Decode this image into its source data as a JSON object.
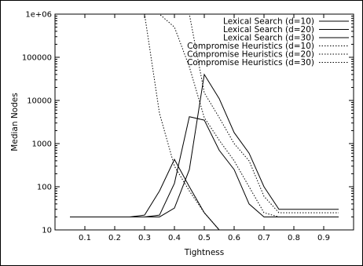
{
  "chart_data": {
    "type": "line",
    "xlabel": "Tightness",
    "ylabel": "Median Nodes",
    "xlim": [
      0,
      1
    ],
    "ylim": [
      10,
      1000000
    ],
    "yscale": "log",
    "x_ticks": [
      "0.1",
      "0.2",
      "0.3",
      "0.4",
      "0.5",
      "0.6",
      "0.7",
      "0.8",
      "0.9"
    ],
    "y_ticks": [
      "10",
      "100",
      "1000",
      "10000",
      "100000",
      "1e+06"
    ],
    "legend_position": "top-right",
    "grid": false,
    "series": [
      {
        "name": "Lexical Search (d=10)",
        "style": "solid",
        "points": [
          [
            0.05,
            20
          ],
          [
            0.1,
            20
          ],
          [
            0.15,
            20
          ],
          [
            0.2,
            20
          ],
          [
            0.25,
            20
          ],
          [
            0.3,
            22
          ],
          [
            0.35,
            80
          ],
          [
            0.4,
            430
          ],
          [
            0.45,
            100
          ],
          [
            0.5,
            25
          ],
          [
            0.55,
            10
          ]
        ]
      },
      {
        "name": "Lexical Search (d=20)",
        "style": "solid",
        "points": [
          [
            0.05,
            20
          ],
          [
            0.1,
            20
          ],
          [
            0.15,
            20
          ],
          [
            0.2,
            20
          ],
          [
            0.25,
            20
          ],
          [
            0.3,
            20
          ],
          [
            0.35,
            22
          ],
          [
            0.4,
            120
          ],
          [
            0.45,
            4200
          ],
          [
            0.5,
            3500
          ],
          [
            0.55,
            700
          ],
          [
            0.6,
            250
          ],
          [
            0.65,
            40
          ],
          [
            0.7,
            20
          ],
          [
            0.75,
            20
          ],
          [
            0.8,
            20
          ],
          [
            0.85,
            20
          ],
          [
            0.9,
            20
          ],
          [
            0.95,
            20
          ]
        ]
      },
      {
        "name": "Lexical Search (d=30)",
        "style": "solid",
        "points": [
          [
            0.05,
            20
          ],
          [
            0.1,
            20
          ],
          [
            0.15,
            20
          ],
          [
            0.2,
            20
          ],
          [
            0.25,
            20
          ],
          [
            0.3,
            20
          ],
          [
            0.35,
            20
          ],
          [
            0.4,
            32
          ],
          [
            0.45,
            250
          ],
          [
            0.5,
            40000
          ],
          [
            0.55,
            11000
          ],
          [
            0.6,
            1800
          ],
          [
            0.65,
            600
          ],
          [
            0.7,
            100
          ],
          [
            0.75,
            30
          ],
          [
            0.8,
            30
          ],
          [
            0.85,
            30
          ],
          [
            0.9,
            30
          ],
          [
            0.95,
            30
          ]
        ]
      },
      {
        "name": "Compromise Heuristics (d=10)",
        "style": "dotted",
        "points": [
          [
            0.05,
            1000000
          ],
          [
            0.1,
            1000000
          ],
          [
            0.15,
            1000000
          ],
          [
            0.2,
            1000000
          ],
          [
            0.25,
            1000000
          ],
          [
            0.3,
            1000000
          ],
          [
            0.35,
            5000
          ],
          [
            0.4,
            300
          ],
          [
            0.45,
            80
          ],
          [
            0.5,
            25
          ],
          [
            0.55,
            10
          ]
        ]
      },
      {
        "name": "Compromise Heuristics (d=20)",
        "style": "dotted",
        "points": [
          [
            0.05,
            1000000
          ],
          [
            0.1,
            1000000
          ],
          [
            0.15,
            1000000
          ],
          [
            0.2,
            1000000
          ],
          [
            0.25,
            1000000
          ],
          [
            0.3,
            1000000
          ],
          [
            0.35,
            1000000
          ],
          [
            0.4,
            500000
          ],
          [
            0.45,
            60000
          ],
          [
            0.5,
            4000
          ],
          [
            0.55,
            1200
          ],
          [
            0.6,
            400
          ],
          [
            0.65,
            100
          ],
          [
            0.7,
            25
          ],
          [
            0.75,
            20
          ],
          [
            0.8,
            20
          ],
          [
            0.85,
            20
          ],
          [
            0.9,
            20
          ],
          [
            0.95,
            20
          ]
        ]
      },
      {
        "name": "Compromise Heuristics (d=30)",
        "style": "dotted",
        "points": [
          [
            0.05,
            1000000
          ],
          [
            0.1,
            1000000
          ],
          [
            0.15,
            1000000
          ],
          [
            0.2,
            1000000
          ],
          [
            0.25,
            1000000
          ],
          [
            0.3,
            1000000
          ],
          [
            0.35,
            1000000
          ],
          [
            0.4,
            1000000
          ],
          [
            0.45,
            1000000
          ],
          [
            0.5,
            15000
          ],
          [
            0.55,
            4000
          ],
          [
            0.6,
            1000
          ],
          [
            0.65,
            400
          ],
          [
            0.7,
            60
          ],
          [
            0.75,
            25
          ],
          [
            0.8,
            25
          ],
          [
            0.85,
            25
          ],
          [
            0.9,
            25
          ],
          [
            0.95,
            25
          ]
        ]
      }
    ]
  }
}
